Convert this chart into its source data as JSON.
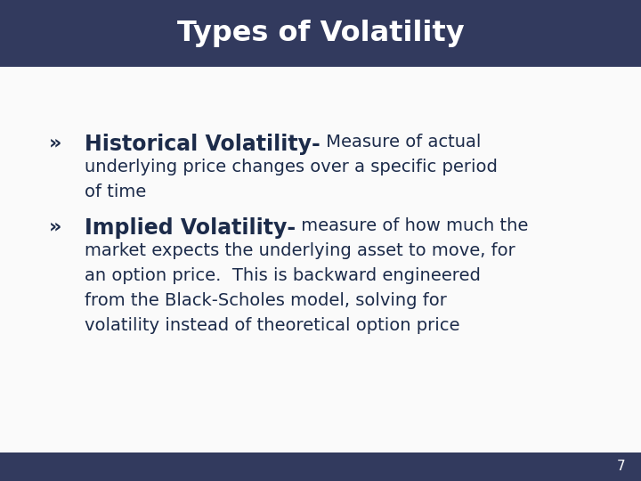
{
  "title": "Types of Volatility",
  "title_color": "#FFFFFF",
  "title_bg_color": "#323A5E",
  "slide_bg_color": "#E8E8EE",
  "content_bg_color": "#FAFAFA",
  "footer_bg_color": "#323A5E",
  "text_color": "#1C2B4A",
  "page_number": "7",
  "bullet_symbol": "»",
  "b1_bold": "Historical Volatility-",
  "b1_normal": " Measure of actual",
  "b1_lines": [
    "underlying price changes over a specific period",
    "of time"
  ],
  "b2_bold": "Implied Volatility-",
  "b2_normal": " measure of how much the",
  "b2_lines": [
    "market expects the underlying asset to move, for",
    "an option price.  This is backward engineered",
    "from the Black-Scholes model, solving for",
    "volatility instead of theoretical option price"
  ]
}
